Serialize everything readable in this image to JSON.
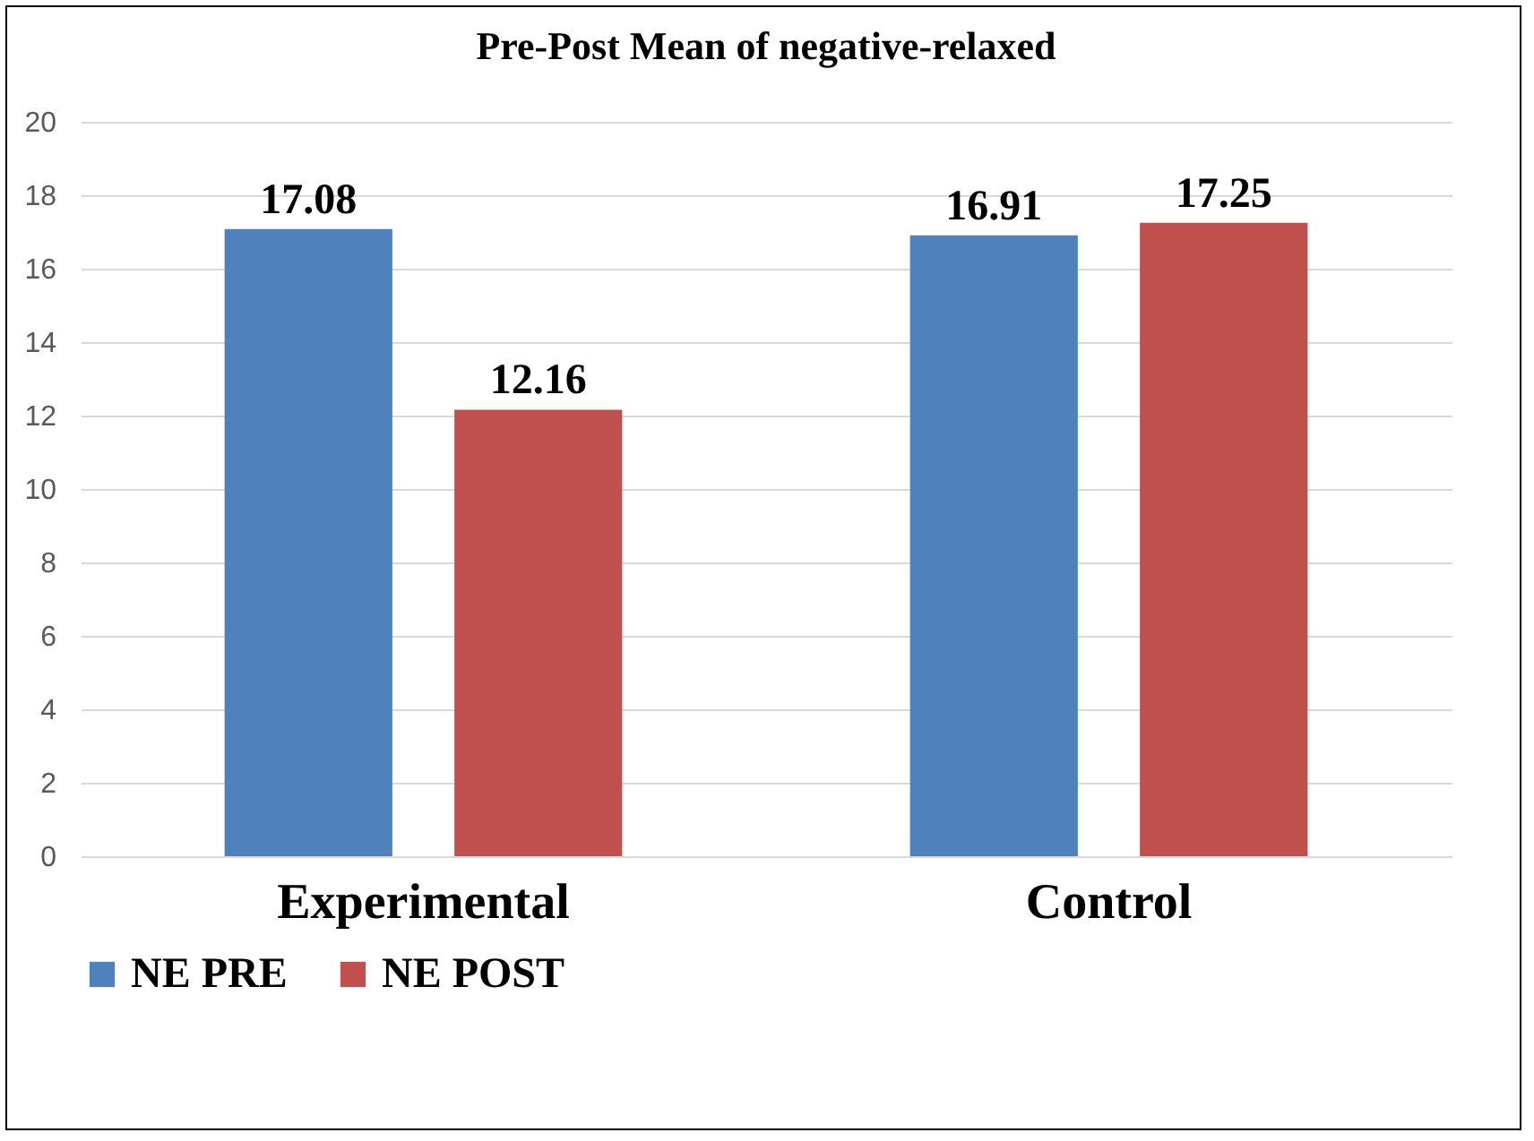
{
  "chart_data": {
    "type": "bar",
    "title": "Pre-Post Mean of negative-relaxed",
    "categories": [
      "Experimental",
      "Control"
    ],
    "series": [
      {
        "name": "NE PRE",
        "color": "#4f81bd",
        "values": [
          17.08,
          16.91
        ]
      },
      {
        "name": "NE POST",
        "color": "#c0504d",
        "values": [
          12.16,
          17.25
        ]
      }
    ],
    "ylim": [
      0,
      20
    ],
    "yticks": [
      0,
      2,
      4,
      6,
      8,
      10,
      12,
      14,
      16,
      18,
      20
    ],
    "grid": "y",
    "legend": "bottom",
    "data_labels": true
  }
}
